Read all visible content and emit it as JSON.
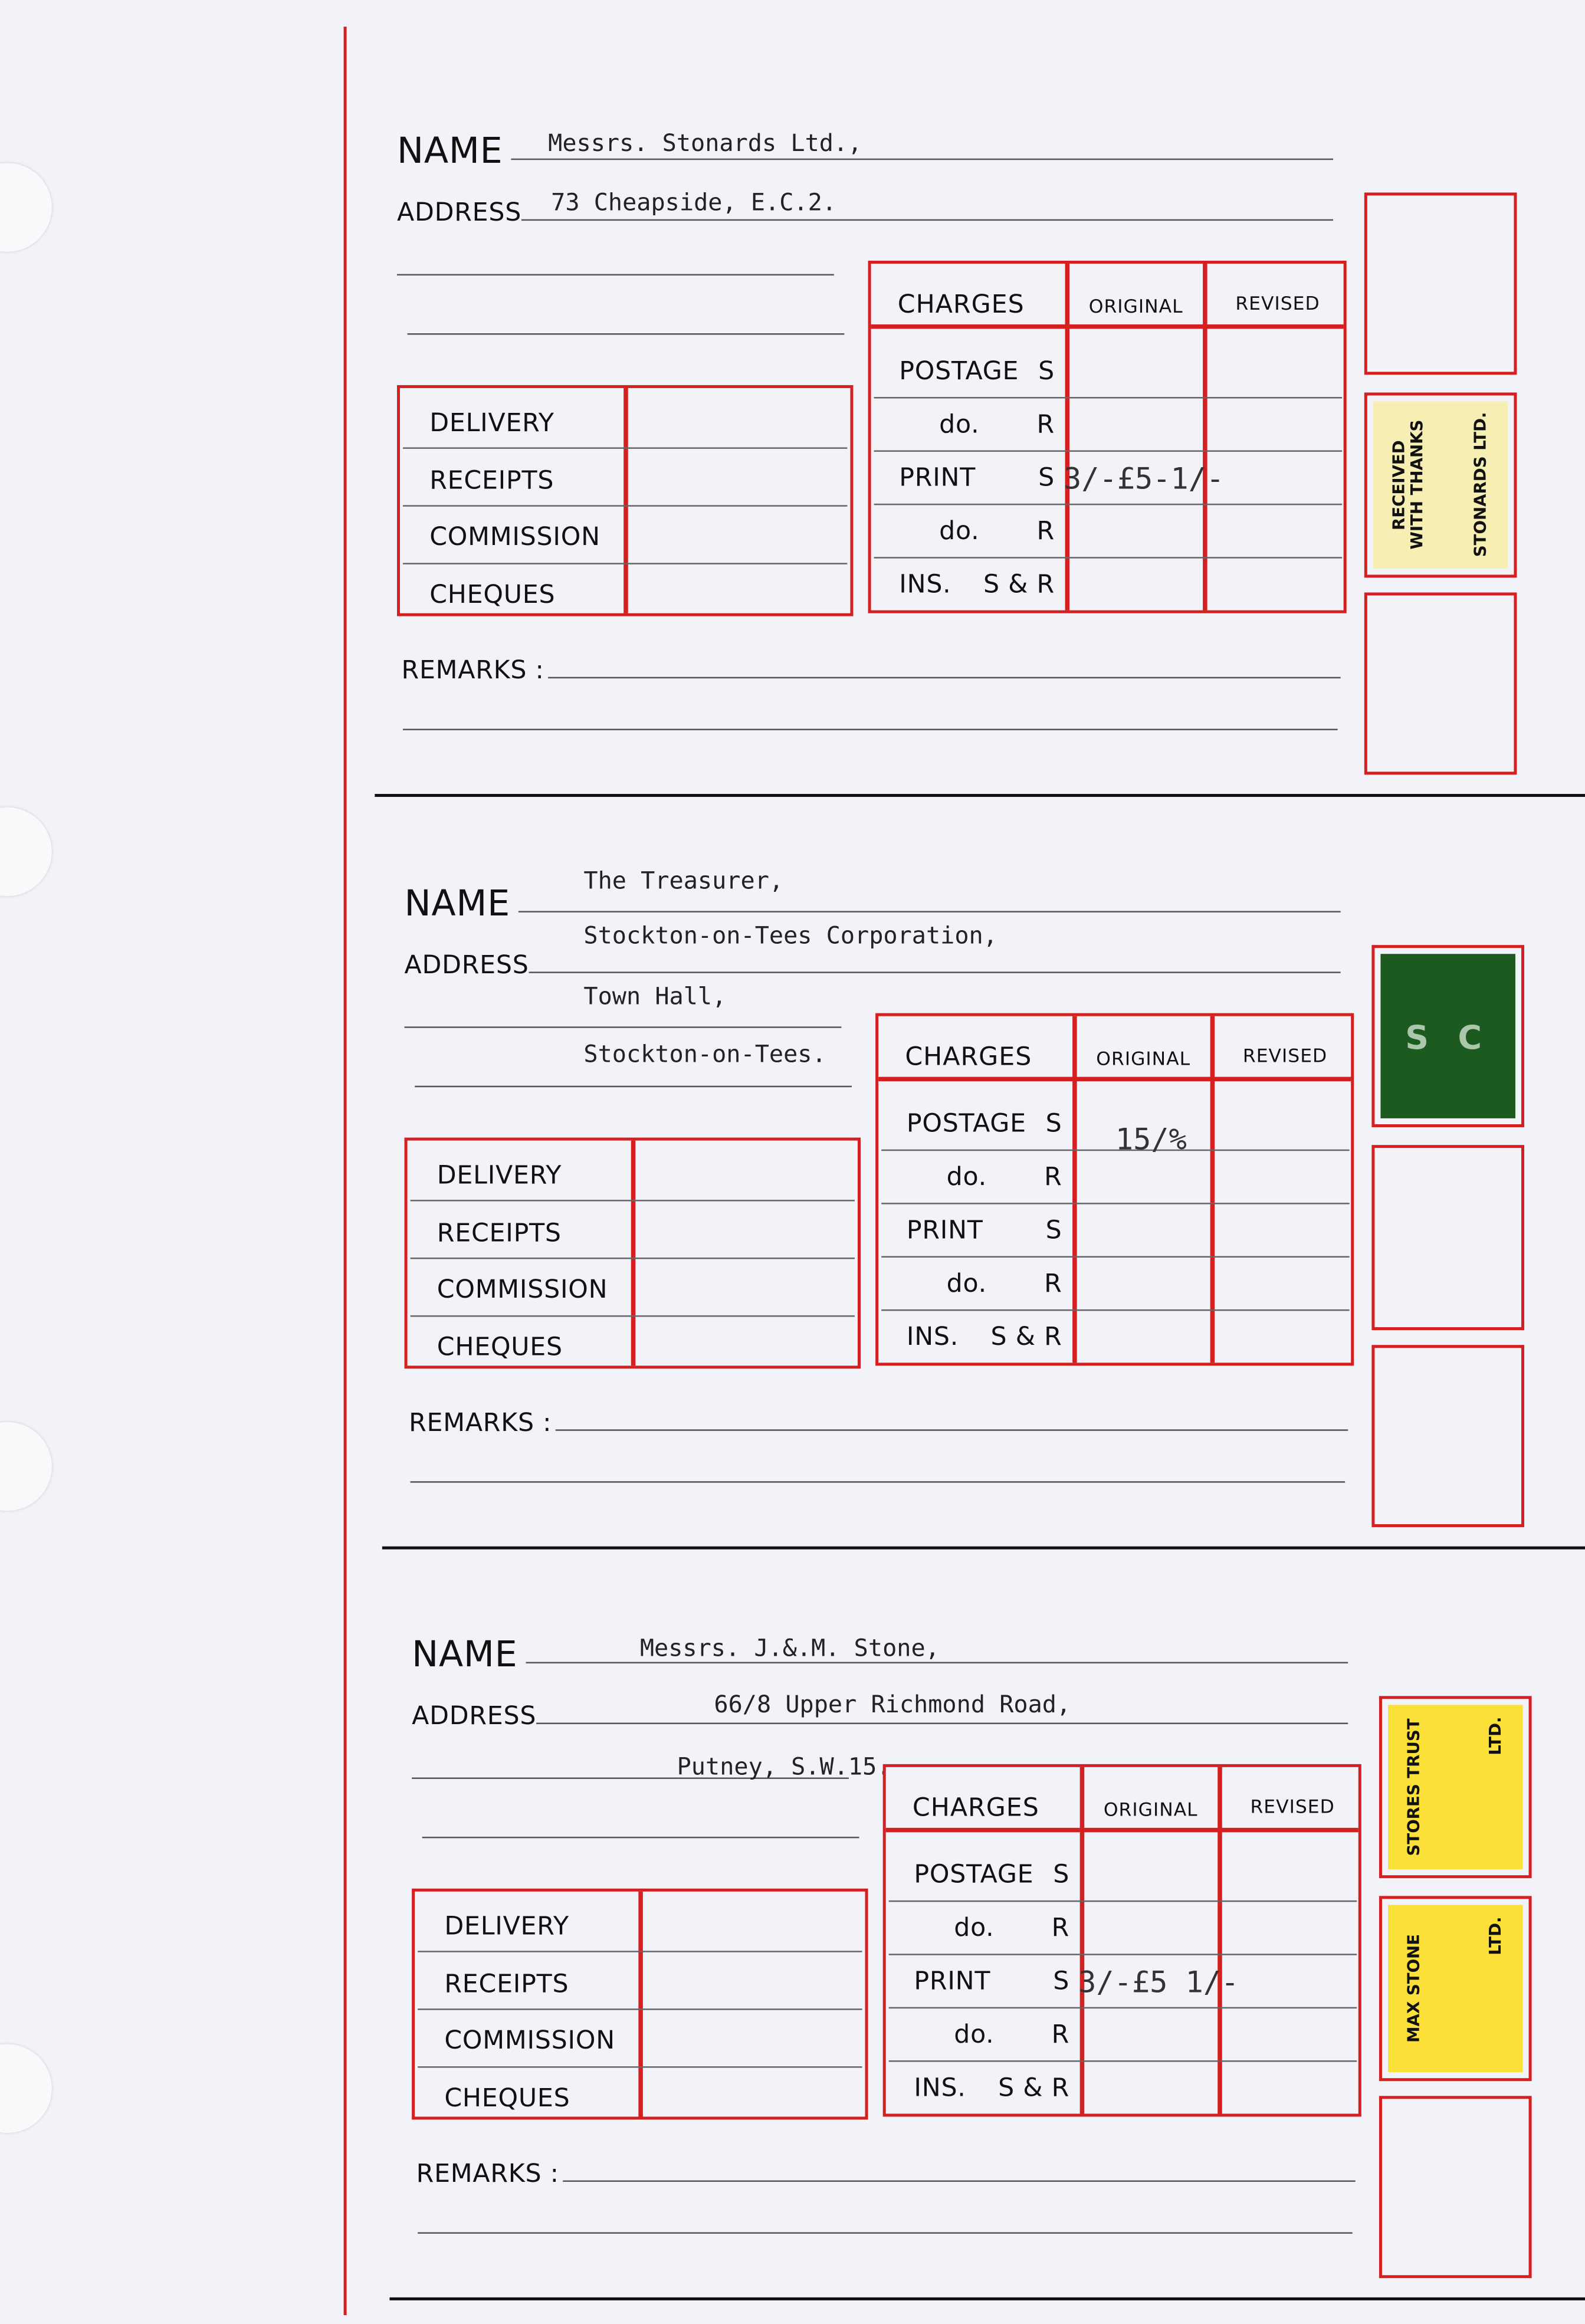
{
  "form": {
    "name_label": "NAME",
    "address_label": "ADDRESS",
    "remarks_label": "REMARKS :",
    "left_rows": [
      "DELIVERY",
      "RECEIPTS",
      "COMMISSION",
      "CHEQUES"
    ],
    "charges_header": "CHARGES",
    "original_header": "ORIGINAL",
    "revised_header": "REVISED",
    "charge_rows": [
      {
        "label": "POSTAGE",
        "code": "S"
      },
      {
        "label": "do.",
        "code": "R"
      },
      {
        "label": "PRINT",
        "code": "S"
      },
      {
        "label": "do.",
        "code": "R"
      },
      {
        "label": "INS.",
        "code": "S & R"
      }
    ]
  },
  "blocks": [
    {
      "typed_lines": [
        "Messrs. Stonards Ltd.,",
        "73 Cheapside, E.C.2."
      ],
      "charge_values": {
        "row": 2,
        "value": "3/-£5-1/-"
      },
      "stamps": [
        null,
        {
          "color": "#f7eeb4",
          "text1": "RECEIVED\nWITH THANKS",
          "text2": "STONARDS LTD."
        },
        null
      ]
    },
    {
      "typed_lines": [
        "The Treasurer,",
        "Stockton-on-Tees Corporation,",
        "Town Hall,",
        "Stockton-on-Tees."
      ],
      "charge_values": {
        "row": 0,
        "value": "15/%"
      },
      "stamps": [
        {
          "color": "#1d5a1f",
          "text1": "",
          "text2": "",
          "perforation": "S C"
        },
        null,
        null
      ]
    },
    {
      "typed_lines": [
        "Messrs. J.&.M. Stone,",
        "66/8 Upper Richmond Road,",
        "Putney, S.W.15."
      ],
      "charge_values": {
        "row": 2,
        "value": "3/-£5 1/-"
      },
      "stamps": [
        {
          "color": "#fbe03a",
          "text1": "STORES TRUST",
          "text2": "LTD."
        },
        {
          "color": "#fbe03a",
          "text1": "MAX STONE",
          "text2": "LTD."
        },
        null
      ]
    }
  ],
  "colors": {
    "form_red": "#d42020",
    "paper": "#f1f3f8"
  }
}
